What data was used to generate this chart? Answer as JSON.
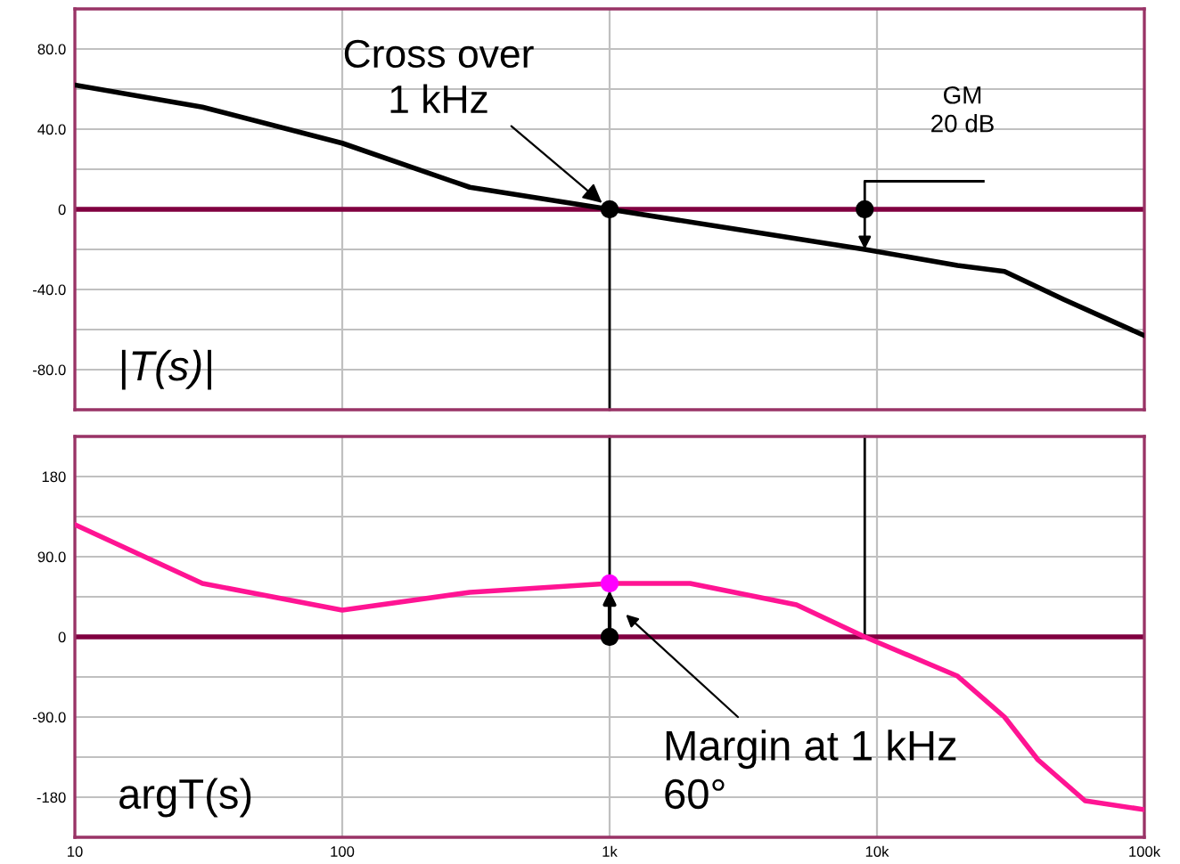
{
  "chart_data": [
    {
      "type": "line",
      "log": "x",
      "xlim": [
        10,
        100000
      ],
      "xticks": [
        {
          "value": 10,
          "label": null
        },
        {
          "value": 100,
          "label": null
        },
        {
          "value": 1000,
          "label": null
        },
        {
          "value": 10000,
          "label": null
        },
        {
          "value": 100000,
          "label": null
        }
      ],
      "ylim": [
        -100,
        100
      ],
      "yticks": [
        {
          "value": -80,
          "label": "-80.0"
        },
        {
          "value": -40,
          "label": "-40.0"
        },
        0,
        {
          "value": 40,
          "label": "40.0"
        },
        {
          "value": 80,
          "label": "80.0"
        }
      ],
      "tick_labels": "y",
      "grid": true,
      "series": [
        {
          "color": "#000000",
          "x": [
            10,
            30,
            100,
            300,
            1000,
            3000,
            9000,
            20000,
            30000,
            50000,
            100000
          ],
          "values": [
            62,
            51,
            33,
            11,
            0,
            -10,
            -20,
            -28,
            -31,
            -45,
            -63
          ]
        },
        {
          "type": "scatter",
          "color": "#000000",
          "x": [
            1000,
            9000
          ],
          "values": [
            0,
            0
          ]
        }
      ],
      "ref_lines": [
        {
          "axis": "y",
          "value": 0,
          "color": "#800040"
        }
      ],
      "annotations": [
        {
          "text": "Cross over\n1 kHz",
          "x": 1000,
          "y": 0
        },
        "GM\n20 dB",
        "|T(s)|"
      ]
    },
    {
      "type": "line",
      "log": "x",
      "xlim": [
        10,
        100000
      ],
      "xticks": [
        {
          "value": 10,
          "label": "10"
        },
        {
          "value": 100,
          "label": "100"
        },
        {
          "value": 1000,
          "label": "1k"
        },
        {
          "value": 10000,
          "label": "10k"
        },
        {
          "value": 100000,
          "label": "100k"
        }
      ],
      "ylim": [
        -225,
        225
      ],
      "yticks": [
        -180,
        {
          "value": -90,
          "label": "-90.0"
        },
        0,
        {
          "value": 90,
          "label": "90.0"
        },
        180
      ],
      "grid": true,
      "series": [
        {
          "color": "#ff1493",
          "x": [
            10,
            30,
            100,
            300,
            1000,
            2000,
            5000,
            9000,
            20000,
            30000,
            40000,
            60000,
            100000
          ],
          "values": [
            126,
            60,
            30,
            50,
            60,
            60,
            36,
            0,
            -44,
            -90,
            -138,
            -184,
            -194
          ]
        },
        {
          "type": "scatter",
          "color": "#000000",
          "x": [
            1000
          ],
          "values": [
            0
          ]
        },
        {
          "type": "scatter",
          "color": "#ff00ff",
          "x": [
            1000
          ],
          "values": [
            60
          ]
        }
      ],
      "ref_lines": [
        {
          "axis": "y",
          "value": 0,
          "color": "#800040"
        }
      ],
      "annotations": [
        "Margin at 1 kHz\n60°",
        "argT(s)"
      ]
    }
  ]
}
